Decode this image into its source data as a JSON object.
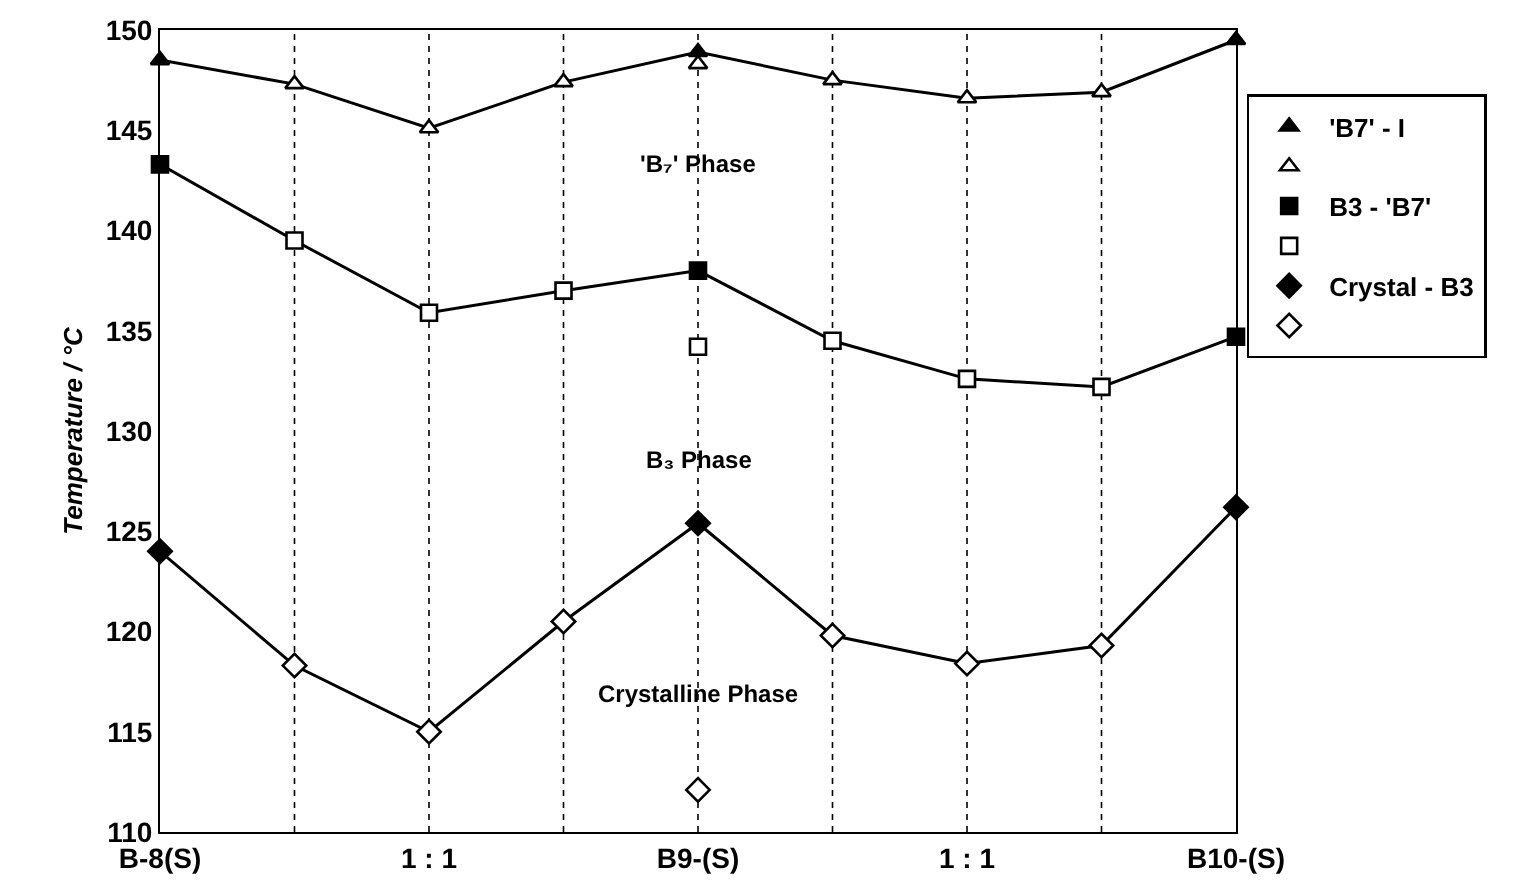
{
  "chart_data": {
    "type": "line",
    "ylabel": "Temperature / °C",
    "categories": [
      "B-8(S)",
      null,
      "1 : 1",
      null,
      "B9-(S)",
      null,
      "1 : 1",
      null,
      "B10-(S)"
    ],
    "ylim": [
      110,
      150
    ],
    "yticks": [
      110,
      115,
      120,
      125,
      130,
      135,
      140,
      145,
      150
    ],
    "grid": "x",
    "legend": "top right",
    "annotations": [
      "'B₇' Phase",
      "B₃ Phase",
      "Crystalline Phase"
    ],
    "series": [
      {
        "marker": "none",
        "color": "#000000",
        "values": [
          148.5,
          147.3,
          145.1,
          147.4,
          148.9,
          147.5,
          146.6,
          146.9,
          149.5
        ]
      },
      {
        "marker": "none",
        "color": "#000000",
        "values": [
          143.3,
          139.5,
          135.9,
          137.0,
          138.0,
          134.5,
          132.6,
          132.2,
          134.7
        ]
      },
      {
        "marker": "none",
        "color": "#000000",
        "values": [
          124.0,
          118.3,
          115.0,
          120.5,
          125.4,
          119.8,
          118.4,
          119.3,
          126.2
        ]
      },
      {
        "type": "scatter",
        "name": "'B7' - I",
        "marker": "triangle",
        "color": "#000000",
        "values": [
          148.5,
          null,
          null,
          null,
          148.9,
          null,
          null,
          null,
          149.5
        ]
      },
      {
        "type": "scatter",
        "marker": "triangle",
        "color": "#ffffff",
        "values": [
          null,
          147.3,
          145.1,
          147.4,
          148.3,
          147.5,
          146.6,
          146.9,
          null
        ]
      },
      {
        "type": "scatter",
        "name": "B3 - 'B7'",
        "marker": "square",
        "color": "#000000",
        "values": [
          143.3,
          null,
          null,
          null,
          138.0,
          null,
          null,
          null,
          134.7
        ]
      },
      {
        "type": "scatter",
        "marker": "square",
        "color": "#ffffff",
        "values": [
          null,
          139.5,
          135.9,
          137.0,
          134.2,
          134.5,
          132.6,
          132.2,
          null
        ]
      },
      {
        "type": "scatter",
        "name": "Crystal - B3",
        "marker": "diamond",
        "color": "#000000",
        "values": [
          124.0,
          null,
          null,
          null,
          125.4,
          null,
          null,
          null,
          126.2
        ]
      },
      {
        "type": "scatter",
        "marker": "diamond",
        "color": "#ffffff",
        "values": [
          null,
          118.3,
          115.0,
          120.5,
          112.1,
          119.8,
          118.4,
          119.3,
          null
        ]
      }
    ]
  }
}
